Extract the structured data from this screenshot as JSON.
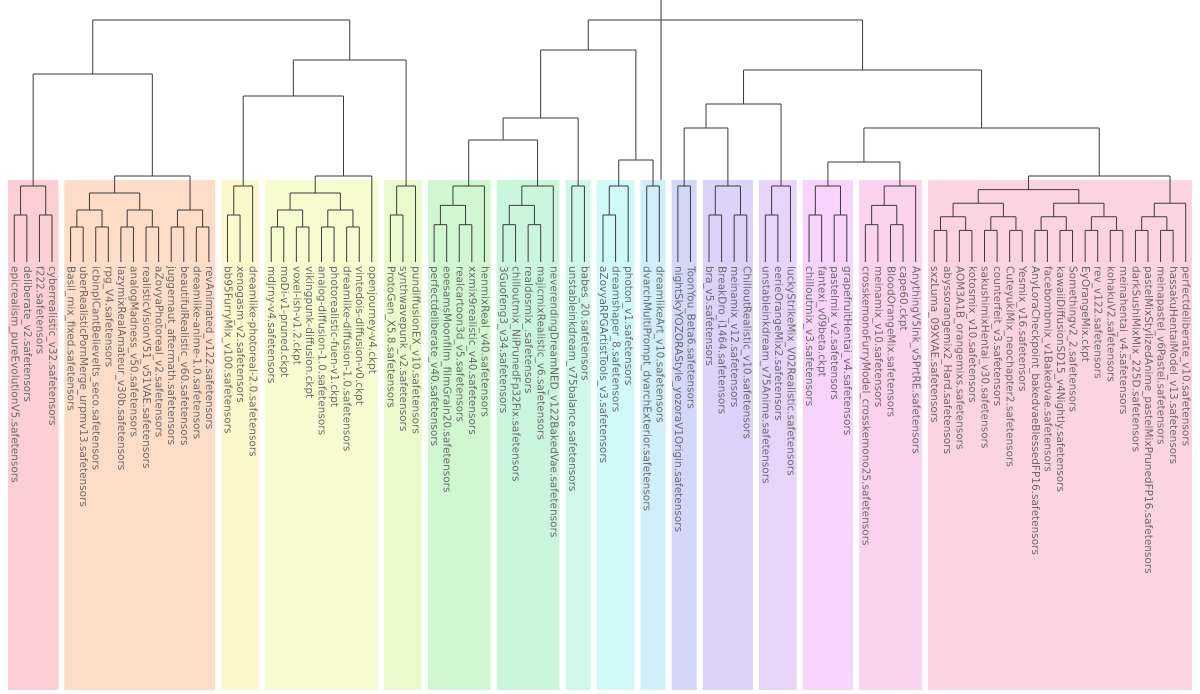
{
  "clusters": [
    {
      "color": "#f9a8b0",
      "leaves": [
        "epicrealism_pureEvolutionV5.safetensors",
        "deliberate_v2.safetensors",
        "f222.safetensors",
        "cyberrealistic_v32.safetensors"
      ]
    },
    {
      "color": "#fbbf9a",
      "leaves": [
        "Basil_mix_fixed.safetensors",
        "uberRealisticPornMerge_urpmv13.safetensors",
        "icbinpICantBelieveIts_seco.safetensors",
        "rpg_V4.safetensors",
        "lazymixRealAmateur_v30b.safetensors",
        "analogMadness_v50.safetensors",
        "realisticVisionV51_v51VAE.safetensors",
        "aZovyaPhotoreal_v2.safetensors",
        "juggernaut_aftermath.safetensors",
        "beautifulRealistic_v60.safetensors",
        "dreamlike-anime-1.0.safetensors",
        "revAnimated_v122.safetensors"
      ]
    },
    {
      "color": "#fbf3a0",
      "leaves": [
        "bb95FurryMix_v100.safetensors",
        "xenogasm_v2.safetensors",
        "dreamlike-photoreal-2.0.safetensors"
      ]
    },
    {
      "color": "#eefaa8",
      "leaves": [
        "mdjrny-v4.safetensors",
        "moDi-v1-pruned.ckpt",
        "voxel-ish-v1.2.ckpt",
        "vikingpunk-diffusion.ckpt",
        "analog-diffusion-1.0.safetensors",
        "photorealistic-fuen-v1.ckpt",
        "dreamlike-diffusion-1.0.safetensors",
        "vintedois-diffusion-v0.ckpt",
        "openjourney-v4.ckpt"
      ]
    },
    {
      "color": "#d9f7a0",
      "leaves": [
        "ProtoGen_X5.8.safetensors",
        "synthwavepunk_v2.safetensors",
        "pundiffusionEX_v10.safetensors"
      ]
    },
    {
      "color": "#a9f0a9",
      "leaves": [
        "perfectdeliberate_v40.safetensors",
        "eoesamsMoonfilm_filmGrain20.safetensors",
        "realcartoon3d_v5.safetensors",
        "xxmix9realistic_v40.safetensors",
        "henmixReal_v40.safetensors"
      ]
    },
    {
      "color": "#9ef0c0",
      "leaves": [
        "3Guofeng3_v34.safetensors",
        "chilloutmix_NiPrunedFp32Fix.safetensors",
        "realdosmix_.safetensors",
        "majicmixRealistic_v6.safetensors",
        "neverendingDreamNED_v122BakedVae.safetensors"
      ]
    },
    {
      "color": "#a6f3d8",
      "leaves": [
        "unstableinkdream_v75balance.safetensors",
        "babes_20.safetensors"
      ]
    },
    {
      "color": "#a9f5f5",
      "leaves": [
        "aZovyaRPGArtistTools_v3.safetensors",
        "dreamshaper_8.safetensors",
        "photon_v1.safetensors"
      ]
    },
    {
      "color": "#a9e2f5",
      "leaves": [
        "dvarchMultiPrompt_dvarchExterior.safetensors",
        "dreamlikeArt_v10.safetensors"
      ]
    },
    {
      "color": "#aeb8f7",
      "leaves": [
        "nightSkyYOZORAStyle_yozoraV1Origin.safetensors",
        "ToonYou_Beta6.safetensors"
      ]
    },
    {
      "color": "#c0aef7",
      "leaves": [
        "bra_v5.safetensors",
        "BreakDro_i1464.safetensors",
        "meinamix_v12.safetensors",
        "ChilloutRealistic_v10.safetensors"
      ]
    },
    {
      "color": "#d6aef7",
      "leaves": [
        "unstableinkdream_v75Anime.safetensors",
        "eerieOrangeMix2.safetensors",
        "luckyStrikeMix_V02Realistic.safetensors"
      ]
    },
    {
      "color": "#f3aef7",
      "leaves": [
        "chilloutmix_v3.safetensors",
        "fantexi_v09beta.ckpt",
        "pastelmix_v2.safetensors",
        "grapefruitHentai_v4.safetensors"
      ]
    },
    {
      "color": "#f9aee0",
      "leaves": [
        "crosskemonoFurryModel_crosskemono25.safetensors",
        "meinamix_v10.safetensors",
        "BloodOrangeMix.safetensors",
        "cape60.ckpt",
        "AnythingV5Ink_v5PrtRE.safetensors"
      ]
    },
    {
      "color": "#f9aec8",
      "leaves": [
        "sxzLuma_09XVAE.safetensors",
        "abyssorangemix2_Hard.safetensors",
        "AOM3A1B_orangemixs.safetensors",
        "kotosmix_v10.safetensors",
        "sakushimixHentai_v30.safetensors",
        "counterfeit_v3.safetensors",
        "CuteyukiMix_neochapter2.safetensors",
        "Yesmix_v16.safetensors",
        "AnyLoraCheckpoint_bakedvaeBlessedFP16.safetensors",
        "facebombmix_v1Bakedvae.safetensors",
        "kawaiiDiffusionSD15_v4Nightly.safetensors",
        "Somethingv2_2.safetensors",
        "EyOrangeMix.ckpt",
        "rev_v122.safetensors",
        "kohakuV2.safetensors",
        "meinahentai_v4.safetensors",
        "darkSushiMixMix_225D.safetensors",
        "pastelMixStylizedAnime_pastelMixPrunedFP16.safetensors",
        "meinapastel_v6Pastel.safetensors",
        "hassakuHentaiModel_v13.safetensors",
        "perfectdeliberate_v10.safetensors"
      ]
    }
  ]
}
